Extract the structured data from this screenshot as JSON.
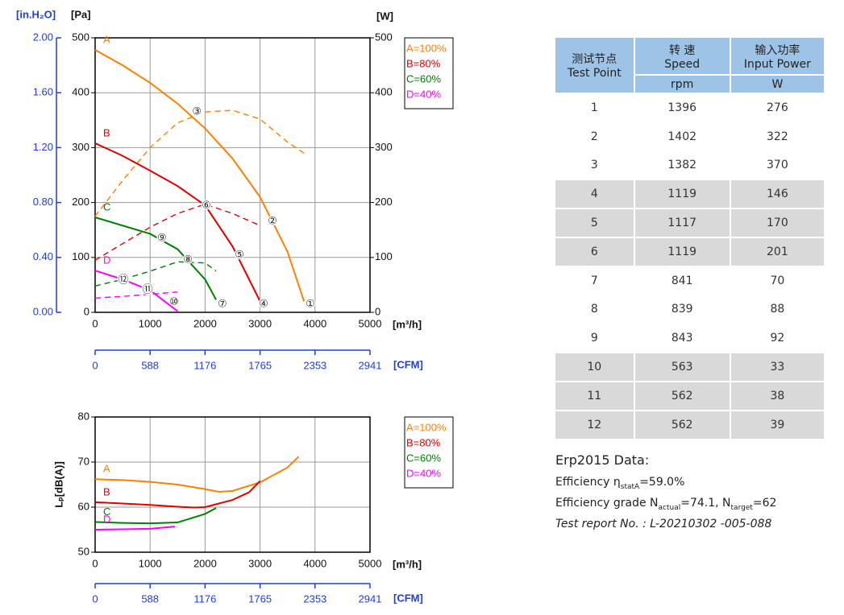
{
  "chart_data": [
    {
      "type": "line",
      "xlabel": "[m³/h]",
      "ylabel": "[Pa]",
      "y2label": "[W]",
      "y3label": "[in.H₂O]",
      "x2label": "[CFM]",
      "xlim": [
        0,
        5000
      ],
      "xticks": [
        0,
        1000,
        2000,
        3000,
        4000,
        5000
      ],
      "x2lim": [
        0,
        2941
      ],
      "x2ticks": [
        0,
        588,
        1176,
        1765,
        2353,
        2941
      ],
      "ylim": [
        0,
        500
      ],
      "yticks": [
        0,
        100,
        200,
        300,
        400,
        500
      ],
      "y2lim": [
        0,
        500
      ],
      "y2ticks": [
        0,
        100,
        200,
        300,
        400,
        500
      ],
      "y3lim": [
        0,
        2
      ],
      "y3ticks": [
        {
          "value": 0,
          "label": "0.00"
        },
        {
          "value": 0.4,
          "label": "0.40"
        },
        {
          "value": 0.8,
          "label": "0.80"
        },
        {
          "value": 1.2,
          "label": "1.20"
        },
        {
          "value": 1.6,
          "label": "1.60"
        },
        {
          "value": 2,
          "label": "2.00"
        }
      ],
      "grid": true,
      "series": [
        {
          "name": "A=100%",
          "label": "A",
          "color": "#ff8000",
          "x": [
            0,
            500,
            1000,
            1500,
            2000,
            2500,
            3000,
            3500,
            3800
          ],
          "values": [
            478,
            450,
            418,
            380,
            335,
            280,
            210,
            110,
            20
          ],
          "power_values": [
            175,
            240,
            300,
            345,
            365,
            368,
            352,
            310,
            290
          ]
        },
        {
          "name": "B=80%",
          "label": "B",
          "color": "#e00000",
          "x": [
            0,
            500,
            1000,
            1500,
            2000,
            2500,
            3000
          ],
          "values": [
            308,
            285,
            258,
            230,
            195,
            120,
            20
          ],
          "power_values": [
            95,
            125,
            155,
            180,
            197,
            180,
            158
          ]
        },
        {
          "name": "C=60%",
          "label": "C",
          "color": "#008000",
          "x": [
            0,
            500,
            1000,
            1500,
            2000,
            2200
          ],
          "values": [
            173,
            158,
            143,
            115,
            60,
            23
          ],
          "power_values": [
            48,
            60,
            75,
            92,
            90,
            75
          ]
        },
        {
          "name": "D=40%",
          "label": "D",
          "color": "#ff00ff",
          "x": [
            0,
            500,
            1000,
            1500
          ],
          "values": [
            76,
            60,
            40,
            2
          ],
          "power_values": [
            26,
            29,
            33,
            37
          ]
        }
      ],
      "points": [
        {
          "label": "①",
          "x": 3915,
          "y": 15
        },
        {
          "label": "②",
          "x": 3225,
          "y": 166
        },
        {
          "label": "③",
          "x": 1850,
          "y": 365
        },
        {
          "label": "④",
          "x": 3065,
          "y": 15
        },
        {
          "label": "⑤",
          "x": 2625,
          "y": 104
        },
        {
          "label": "⑥",
          "x": 2025,
          "y": 194
        },
        {
          "label": "⑦",
          "x": 2315,
          "y": 15
        },
        {
          "label": "⑧",
          "x": 1690,
          "y": 95
        },
        {
          "label": "⑨",
          "x": 1215,
          "y": 135
        },
        {
          "label": "⑩",
          "x": 1435,
          "y": 18
        },
        {
          "label": "⑪",
          "x": 955,
          "y": 41
        },
        {
          "label": "⑫",
          "x": 515,
          "y": 59
        }
      ]
    },
    {
      "type": "line",
      "xlabel": "[m³/h]",
      "ylabel": "Lₚ[dB(A)]",
      "x2label": "[CFM]",
      "xlim": [
        0,
        5000
      ],
      "xticks": [
        0,
        1000,
        2000,
        3000,
        4000,
        5000
      ],
      "x2lim": [
        0,
        2941
      ],
      "x2ticks": [
        0,
        588,
        1176,
        1765,
        2353,
        2941
      ],
      "ylim": [
        50,
        80
      ],
      "yticks": [
        50,
        60,
        70,
        80
      ],
      "grid": true,
      "series": [
        {
          "name": "A=100%",
          "label": "A",
          "color": "#ff8000",
          "x": [
            0,
            500,
            1000,
            1500,
            2000,
            2250,
            2500,
            3000,
            3500,
            3700
          ],
          "values": [
            66.2,
            66,
            65.6,
            65,
            64,
            63.4,
            63.6,
            65.5,
            68.8,
            71.2
          ]
        },
        {
          "name": "B=80%",
          "label": "B",
          "color": "#e00000",
          "x": [
            0,
            500,
            1000,
            1500,
            1800,
            2000,
            2500,
            2800,
            3000
          ],
          "values": [
            61.1,
            60.8,
            60.5,
            60.1,
            59.9,
            60,
            61.6,
            63.3,
            65.8
          ]
        },
        {
          "name": "C=60%",
          "label": "C",
          "color": "#008000",
          "x": [
            0,
            500,
            1000,
            1500,
            2000,
            2200
          ],
          "values": [
            56.7,
            56.5,
            56.4,
            56.6,
            58.5,
            59.8
          ]
        },
        {
          "name": "D=40%",
          "label": "D",
          "color": "#ff00ff",
          "x": [
            0,
            500,
            1000,
            1450
          ],
          "values": [
            55,
            55.1,
            55.2,
            55.7
          ]
        }
      ]
    }
  ],
  "table": {
    "header": {
      "point": [
        "测试节点",
        "Test Point"
      ],
      "speed": [
        "转 速",
        "Speed"
      ],
      "speed_unit": "rpm",
      "power": [
        "输入功率",
        "Input Power"
      ],
      "power_unit": "W"
    },
    "rows": [
      [
        1,
        1396,
        276
      ],
      [
        2,
        1402,
        322
      ],
      [
        3,
        1382,
        370
      ],
      [
        4,
        1119,
        146
      ],
      [
        5,
        1117,
        170
      ],
      [
        6,
        1119,
        201
      ],
      [
        7,
        841,
        70
      ],
      [
        8,
        839,
        88
      ],
      [
        9,
        843,
        92
      ],
      [
        10,
        563,
        33
      ],
      [
        11,
        562,
        38
      ],
      [
        12,
        562,
        39
      ]
    ]
  },
  "erp": {
    "title": "Erp2015  Data:",
    "efficiency": [
      "Efficiency η",
      "statA",
      "=59.0%"
    ],
    "grade": [
      "Efficiency grade  N",
      "actual",
      "=74.1, N",
      "target",
      "=62"
    ],
    "report": "Test report No. : L-20210302 -005-088"
  }
}
